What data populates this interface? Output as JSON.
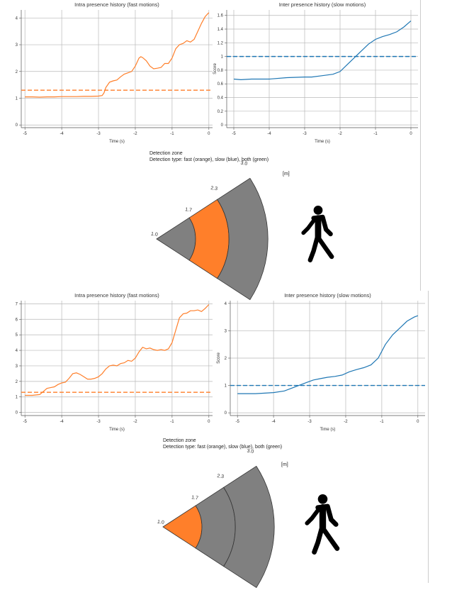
{
  "panels": [
    {
      "fast_chart": {
        "type": "line",
        "title": "Intra presence history (fast motions)",
        "xlabel": "Time (s)",
        "ylabel": "",
        "xlim": [
          -5.1,
          0.1
        ],
        "ylim": [
          -0.1,
          4.3
        ],
        "xticks": [
          -5,
          -4,
          -3,
          -2,
          -1,
          0
        ],
        "yticks": [
          0,
          1,
          2,
          3,
          4
        ],
        "grid": true,
        "series_color": "#ff7f2a",
        "threshold": 1.3,
        "x": [
          -5,
          -4.8,
          -4.6,
          -4.4,
          -4.2,
          -4,
          -3.8,
          -3.6,
          -3.4,
          -3.2,
          -3,
          -2.9,
          -2.85,
          -2.8,
          -2.7,
          -2.6,
          -2.5,
          -2.4,
          -2.3,
          -2.2,
          -2.1,
          -2,
          -1.9,
          -1.85,
          -1.8,
          -1.7,
          -1.6,
          -1.5,
          -1.4,
          -1.3,
          -1.2,
          -1.1,
          -1.0,
          -0.9,
          -0.8,
          -0.7,
          -0.6,
          -0.5,
          -0.4,
          -0.3,
          -0.2,
          -0.1,
          0
        ],
        "y": [
          1.05,
          1.05,
          1.04,
          1.05,
          1.05,
          1.06,
          1.06,
          1.06,
          1.07,
          1.07,
          1.08,
          1.1,
          1.2,
          1.4,
          1.6,
          1.65,
          1.68,
          1.8,
          1.9,
          1.95,
          2.0,
          2.2,
          2.5,
          2.55,
          2.52,
          2.4,
          2.2,
          2.1,
          2.12,
          2.15,
          2.3,
          2.3,
          2.5,
          2.85,
          3.0,
          3.05,
          3.15,
          3.1,
          3.2,
          3.5,
          3.8,
          4.05,
          4.2
        ]
      },
      "slow_chart": {
        "type": "line",
        "title": "Inter presence history (slow motions)",
        "xlabel": "Time (s)",
        "ylabel": "Score",
        "xlim": [
          -5.2,
          0.2
        ],
        "ylim": [
          -0.04,
          1.68
        ],
        "xticks": [
          -5,
          -4,
          -3,
          -2,
          -1,
          0
        ],
        "yticks": [
          0,
          0.2,
          0.4,
          0.6,
          0.8,
          1,
          1.2,
          1.4,
          1.6
        ],
        "grid": true,
        "series_color": "#1f77b4",
        "threshold": 1.0,
        "x": [
          -5,
          -4.8,
          -4.5,
          -4,
          -3.5,
          -3,
          -2.8,
          -2.5,
          -2.2,
          -2.0,
          -1.8,
          -1.6,
          -1.4,
          -1.2,
          -1.0,
          -0.8,
          -0.6,
          -0.4,
          -0.2,
          0
        ],
        "y": [
          0.67,
          0.66,
          0.67,
          0.67,
          0.69,
          0.7,
          0.7,
          0.72,
          0.74,
          0.78,
          0.88,
          0.98,
          1.08,
          1.18,
          1.25,
          1.29,
          1.32,
          1.36,
          1.43,
          1.52
        ]
      },
      "zone": {
        "title": "Detection zone",
        "subtitle": "Detection type: fast (orange), slow (blue), both (green)",
        "unit": "[m]",
        "labels": [
          "1.0",
          "1.7",
          "2.3",
          "3.0"
        ],
        "distances": [
          1.0,
          1.7,
          2.3,
          3.0
        ],
        "segment_colors": [
          "#808080",
          "#ff7f2a",
          "#808080"
        ],
        "person_icon": "walking-person-icon"
      }
    },
    {
      "fast_chart": {
        "type": "line",
        "title": "Intra presence history (fast motions)",
        "xlabel": "Time (s)",
        "ylabel": "",
        "xlim": [
          -5.1,
          0.1
        ],
        "ylim": [
          -0.2,
          7.2
        ],
        "xticks": [
          -5,
          -4,
          -3,
          -2,
          -1,
          0
        ],
        "yticks": [
          0,
          1,
          2,
          3,
          4,
          5,
          6,
          7
        ],
        "grid": true,
        "series_color": "#ff7f2a",
        "threshold": 1.3,
        "x": [
          -5,
          -4.8,
          -4.6,
          -4.5,
          -4.4,
          -4.3,
          -4.2,
          -4.1,
          -4.0,
          -3.9,
          -3.8,
          -3.7,
          -3.6,
          -3.5,
          -3.4,
          -3.3,
          -3.2,
          -3.1,
          -3.0,
          -2.9,
          -2.8,
          -2.7,
          -2.6,
          -2.5,
          -2.4,
          -2.3,
          -2.2,
          -2.1,
          -2.0,
          -1.9,
          -1.8,
          -1.7,
          -1.6,
          -1.5,
          -1.4,
          -1.3,
          -1.2,
          -1.1,
          -1.0,
          -0.9,
          -0.8,
          -0.7,
          -0.6,
          -0.5,
          -0.4,
          -0.3,
          -0.2,
          -0.1,
          0
        ],
        "y": [
          1.1,
          1.1,
          1.15,
          1.35,
          1.55,
          1.6,
          1.65,
          1.8,
          1.9,
          1.95,
          2.2,
          2.5,
          2.55,
          2.45,
          2.3,
          2.15,
          2.15,
          2.2,
          2.3,
          2.5,
          2.8,
          3.0,
          3.05,
          3.0,
          3.15,
          3.2,
          3.35,
          3.3,
          3.5,
          3.9,
          4.2,
          4.1,
          4.15,
          4.05,
          4.0,
          4.05,
          4.0,
          4.1,
          4.5,
          5.3,
          6.1,
          6.35,
          6.4,
          6.55,
          6.55,
          6.6,
          6.5,
          6.7,
          6.95
        ]
      },
      "slow_chart": {
        "type": "line",
        "title": "Inter presence history (slow motions)",
        "xlabel": "Time (s)",
        "ylabel": "Score",
        "xlim": [
          -5.2,
          0.2
        ],
        "ylim": [
          -0.1,
          4.1
        ],
        "xticks": [
          -5,
          -4,
          -3,
          -2,
          -1,
          0
        ],
        "yticks": [
          0,
          1,
          2,
          3,
          4
        ],
        "grid": true,
        "series_color": "#1f77b4",
        "threshold": 1.0,
        "x": [
          -5,
          -4.5,
          -4,
          -3.7,
          -3.5,
          -3.3,
          -3.1,
          -2.9,
          -2.7,
          -2.5,
          -2.3,
          -2.1,
          -1.9,
          -1.7,
          -1.5,
          -1.3,
          -1.1,
          -0.9,
          -0.7,
          -0.5,
          -0.3,
          -0.1,
          0
        ],
        "y": [
          0.7,
          0.7,
          0.74,
          0.8,
          0.9,
          1.0,
          1.1,
          1.2,
          1.25,
          1.3,
          1.33,
          1.38,
          1.5,
          1.58,
          1.65,
          1.75,
          2.0,
          2.5,
          2.85,
          3.1,
          3.35,
          3.5,
          3.55
        ]
      },
      "zone": {
        "title": "Detection zone",
        "subtitle": "Detection type: fast (orange), slow (blue), both (green)",
        "unit": "[m]",
        "labels": [
          "1.0",
          "1.7",
          "2.3",
          "3.0"
        ],
        "distances": [
          1.0,
          1.7,
          2.3,
          3.0
        ],
        "segment_colors": [
          "#ff7f2a",
          "#808080",
          "#808080"
        ],
        "person_icon": "walking-person-icon"
      }
    }
  ]
}
